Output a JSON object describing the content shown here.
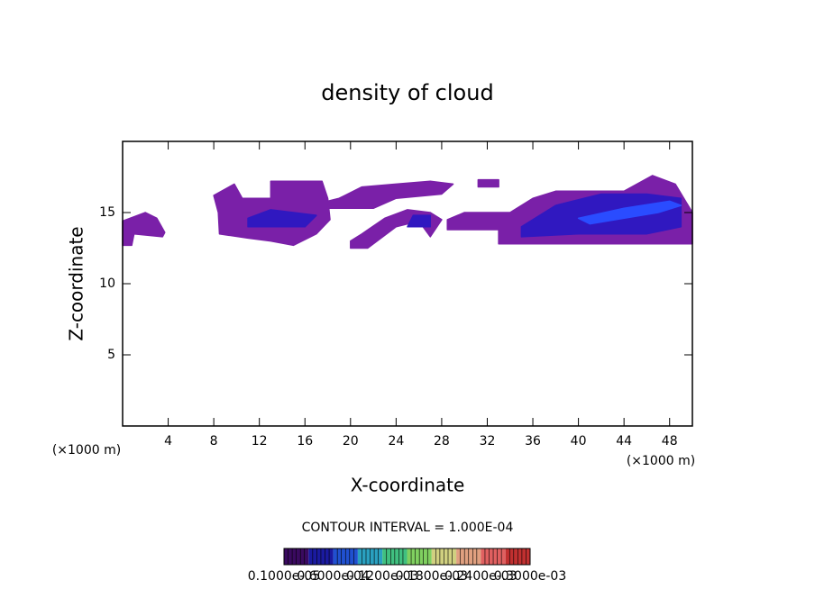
{
  "chart_data": {
    "type": "contour",
    "title": "density of cloud",
    "x_label": "X-coordinate",
    "y_label": "Z-coordinate",
    "x_unit": "(×1000 m)",
    "y_unit": "(×1000 m)",
    "xlim": [
      0,
      50
    ],
    "ylim": [
      0,
      20
    ],
    "xticks": [
      4,
      8,
      12,
      16,
      20,
      24,
      28,
      32,
      36,
      40,
      44,
      48
    ],
    "yticks": [
      5,
      10,
      15
    ],
    "annotation": "CONTOUR INTERVAL = 1.000E-04",
    "colorbar": {
      "colors": [
        "#3a0a60",
        "#1a1aa0",
        "#2050d0",
        "#2aa0c0",
        "#40c080",
        "#80d060",
        "#d0d080",
        "#e0a080",
        "#e06060",
        "#c03030"
      ],
      "labels": [
        "0.1000e-05",
        "0.6000e-04",
        "0.1200e-03",
        "0.1800e-03",
        "0.2400e-03",
        "0.3000e-03"
      ]
    },
    "regions": [
      {
        "color": "#7a20a8",
        "x": [
          0,
          0.8,
          1,
          3.5,
          3.7,
          3,
          2,
          0
        ],
        "z": [
          12.7,
          12.7,
          13.5,
          13.3,
          13.6,
          14.6,
          15,
          14.4
        ]
      },
      {
        "color": "#7a20a8",
        "x": [
          8,
          9.8,
          10.5,
          13,
          13,
          17.5,
          18,
          18.2,
          17,
          15,
          13,
          11,
          8.5,
          8.4
        ],
        "z": [
          16.2,
          17,
          16,
          16,
          17.2,
          17.2,
          16,
          14.5,
          13.5,
          12.7,
          13,
          13.2,
          13.5,
          15
        ]
      },
      {
        "color": "#7a20a8",
        "x": [
          18,
          22,
          24,
          28,
          29,
          27,
          24,
          21,
          19,
          18
        ],
        "z": [
          15.3,
          15.3,
          16,
          16.3,
          17,
          17.2,
          17,
          16.8,
          16,
          15.8
        ]
      },
      {
        "color": "#7a20a8",
        "x": [
          31.2,
          33,
          33,
          31.2
        ],
        "z": [
          16.8,
          16.8,
          17.3,
          17.3
        ]
      },
      {
        "color": "#7a20a8",
        "x": [
          20,
          21.5,
          24,
          26,
          27,
          28,
          27,
          25,
          23,
          21,
          20
        ],
        "z": [
          12.5,
          12.5,
          14,
          14.4,
          13.3,
          14.5,
          15,
          15.2,
          14.6,
          13.5,
          13
        ]
      },
      {
        "color": "#7a20a8",
        "x": [
          28.5,
          33,
          33,
          50,
          50,
          48.5,
          46.5,
          44,
          38,
          36,
          34,
          30,
          28.5
        ],
        "z": [
          13.8,
          13.8,
          12.8,
          12.8,
          15,
          17,
          17.6,
          16.5,
          16.5,
          16,
          15,
          15,
          14.5
        ]
      },
      {
        "color": "#3018c0",
        "x": [
          35,
          40,
          46,
          49,
          49,
          46,
          42,
          38,
          35
        ],
        "z": [
          13.3,
          13.5,
          13.5,
          14,
          16,
          16.3,
          16.3,
          15.5,
          14
        ]
      },
      {
        "color": "#3018c0",
        "x": [
          11,
          16,
          17,
          13,
          11
        ],
        "z": [
          14,
          14,
          14.8,
          15.2,
          14.6
        ]
      },
      {
        "color": "#3018c0",
        "x": [
          25,
          27,
          27,
          25.5
        ],
        "z": [
          14,
          14,
          14.8,
          14.8
        ]
      },
      {
        "color": "#2a4cff",
        "x": [
          41,
          47,
          49,
          48,
          44,
          40
        ],
        "z": [
          14.2,
          15,
          15.5,
          15.8,
          15.3,
          14.6
        ]
      }
    ]
  }
}
